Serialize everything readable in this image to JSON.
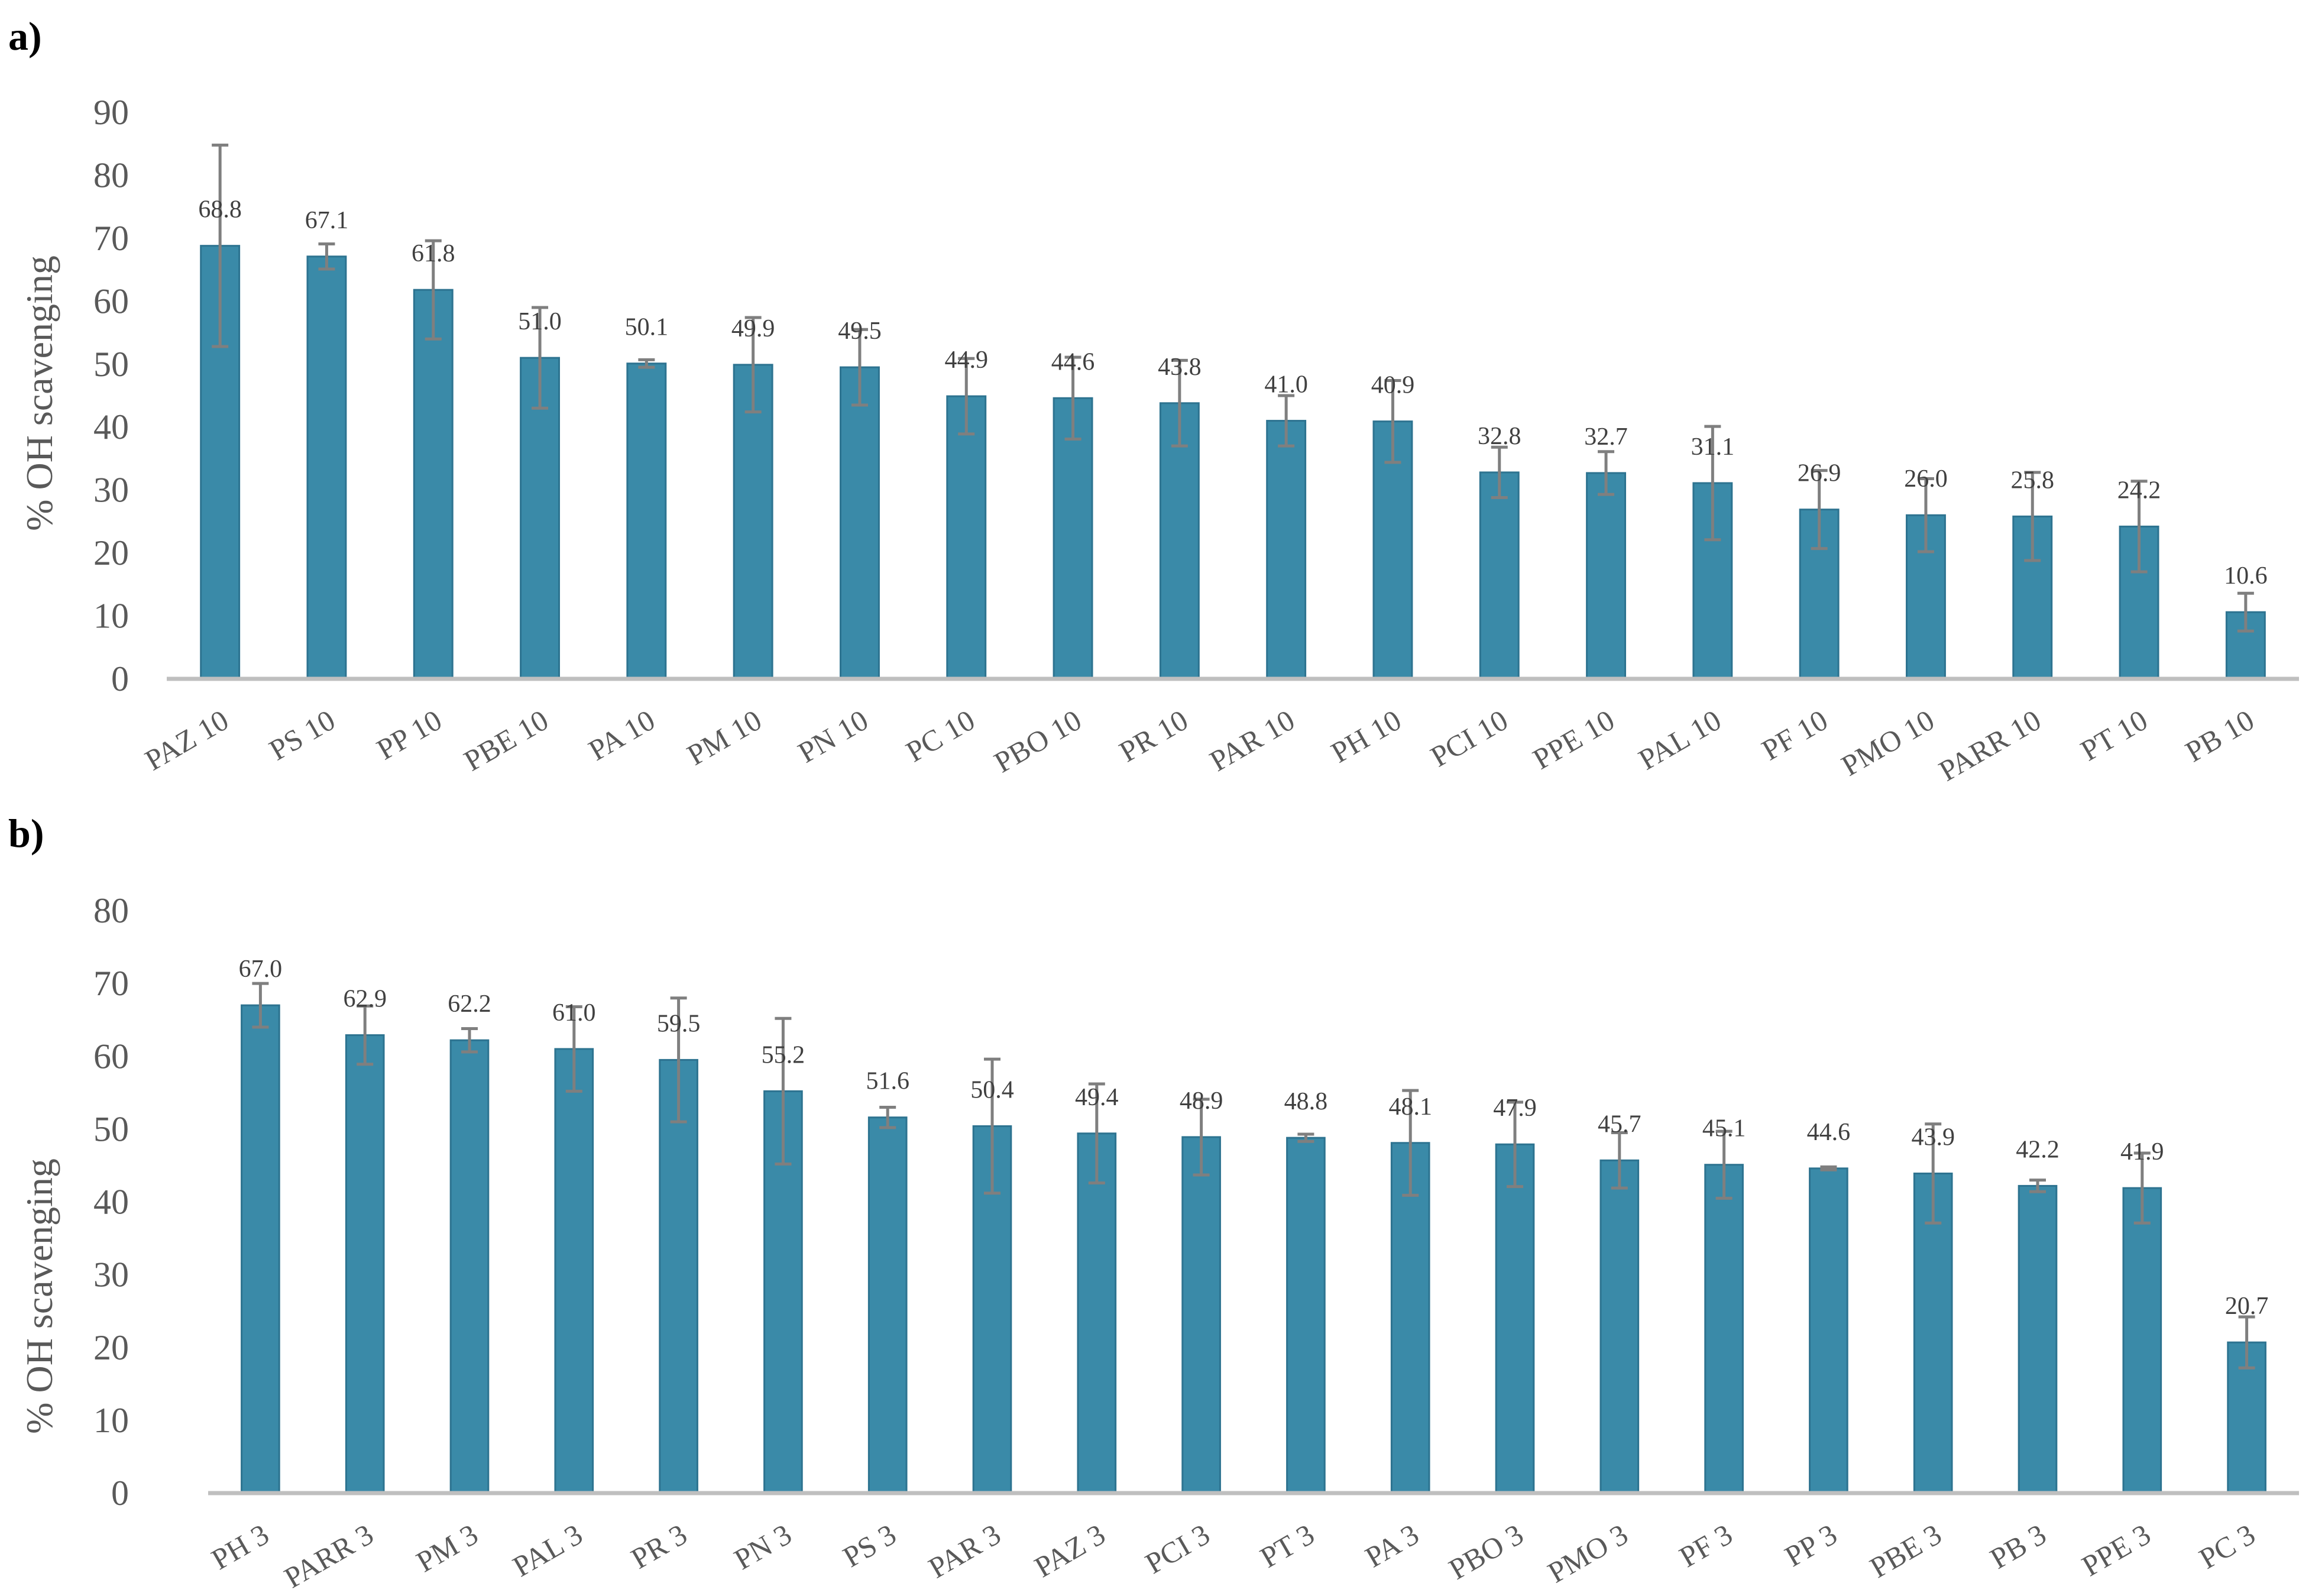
{
  "chart_data": [
    {
      "type": "bar",
      "panel_label": "a)",
      "ylabel": "% OH scavenging",
      "ylim": [
        0,
        90
      ],
      "yticks": [
        "0",
        "10",
        "20",
        "30",
        "40",
        "50",
        "60",
        "70",
        "80",
        "90"
      ],
      "categories": [
        "PAZ 10",
        "PS 10",
        "PP 10",
        "PBE 10",
        "PA 10",
        "PM 10",
        "PN 10",
        "PC 10",
        "PBO 10",
        "PR 10",
        "PAR 10",
        "PH 10",
        "PCI 10",
        "PPE 10",
        "PAL 10",
        "PF 10",
        "PMO 10",
        "PARR 10",
        "PT 10",
        "PB 10"
      ],
      "values": [
        68.8,
        67.1,
        61.8,
        51.0,
        50.1,
        49.9,
        49.5,
        44.9,
        44.6,
        43.8,
        41.0,
        40.9,
        32.8,
        32.7,
        31.1,
        26.9,
        26.0,
        25.8,
        24.2,
        10.6
      ],
      "value_labels": [
        "68.8",
        "67.1",
        "61.8",
        "51.0",
        "50.1",
        "49.9",
        "49.5",
        "44.9",
        "44.6",
        "43.8",
        "41.0",
        "40.9",
        "32.8",
        "32.7",
        "31.1",
        "26.9",
        "26.0",
        "25.8",
        "24.2",
        "10.6"
      ],
      "errors": [
        16.0,
        2.0,
        7.8,
        8.0,
        0.6,
        7.5,
        6.0,
        6.0,
        6.5,
        6.8,
        4.0,
        6.5,
        4.0,
        3.4,
        9.0,
        6.2,
        5.8,
        7.0,
        7.2,
        3.0
      ],
      "color": "#3a8aa8",
      "error_color": "#7f7f7f",
      "grid": false,
      "legend": "none"
    },
    {
      "type": "bar",
      "panel_label": "b)",
      "ylabel": "% OH scavenging",
      "ylim": [
        0,
        80
      ],
      "yticks": [
        "0",
        "10",
        "20",
        "30",
        "40",
        "50",
        "60",
        "70",
        "80"
      ],
      "categories": [
        "PH 3",
        "PARR 3",
        "PM 3",
        "PAL 3",
        "PR 3",
        "PN 3",
        "PS 3",
        "PAR 3",
        "PAZ 3",
        "PCI 3",
        "PT 3",
        "PA 3",
        "PBO 3",
        "PMO 3",
        "PF 3",
        "PP 3",
        "PBE 3",
        "PB 3",
        "PPE 3",
        "PC 3"
      ],
      "values": [
        67.0,
        62.9,
        62.2,
        61.0,
        59.5,
        55.2,
        51.6,
        50.4,
        49.4,
        48.9,
        48.8,
        48.1,
        47.9,
        45.7,
        45.1,
        44.6,
        43.9,
        42.2,
        41.9,
        20.7
      ],
      "value_labels": [
        "67.0",
        "62.9",
        "62.2",
        "61.0",
        "59.5",
        "55.2",
        "51.6",
        "50.4",
        "49.4",
        "48.9",
        "48.8",
        "48.1",
        "47.9",
        "45.7",
        "45.1",
        "44.6",
        "43.9",
        "42.2",
        "41.9",
        "20.7"
      ],
      "errors": [
        3.0,
        4.0,
        1.6,
        5.8,
        8.5,
        10.0,
        1.4,
        9.2,
        6.8,
        5.2,
        0.5,
        7.2,
        5.8,
        3.8,
        4.6,
        0.2,
        6.8,
        0.8,
        4.8,
        3.5
      ],
      "color": "#3a8aa8",
      "error_color": "#7f7f7f",
      "grid": false,
      "legend": "none"
    }
  ]
}
